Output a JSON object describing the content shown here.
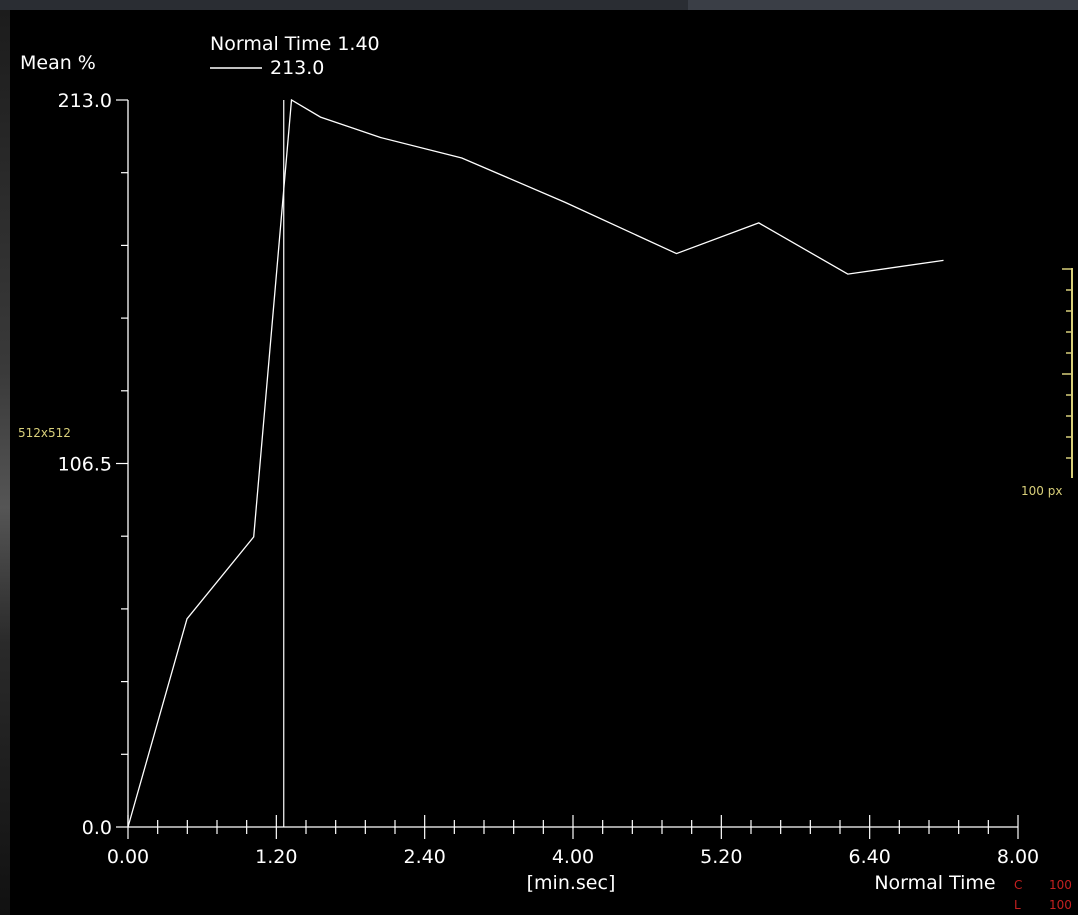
{
  "overlay": {
    "resolution": "512x512",
    "scale_label": "100 px",
    "c_label": "C",
    "c_value": "100",
    "l_label": "L",
    "l_value": "100"
  },
  "colors": {
    "background": "#000000",
    "line": "#ffffff",
    "overlay_yellow": "#d8cf7a",
    "overlay_red": "#c42020"
  },
  "chart_data": {
    "type": "line",
    "ylabel": "Mean %",
    "xlabel": "[min.sec]",
    "xlabel2": "Normal Time",
    "legend": {
      "title": "Normal Time 1.40",
      "entry": "213.0",
      "position": "top-left"
    },
    "ylim": [
      0,
      213
    ],
    "xlim": [
      0,
      8.0
    ],
    "y_ticks": [
      "0.0",
      "106.5",
      "213.0"
    ],
    "x_ticks": [
      "0.00",
      "1.20",
      "2.40",
      "4.00",
      "5.20",
      "6.40",
      "8.00"
    ],
    "series": [
      {
        "x": [
          0.0,
          0.53,
          1.13,
          1.47,
          1.73,
          2.27,
          3.0,
          3.93,
          4.93,
          5.67,
          6.47,
          7.33
        ],
        "y": [
          0,
          61,
          85,
          213,
          208,
          202,
          196,
          183,
          168,
          177,
          162,
          166
        ]
      }
    ],
    "cursor_x": 1.4,
    "grid": false
  }
}
